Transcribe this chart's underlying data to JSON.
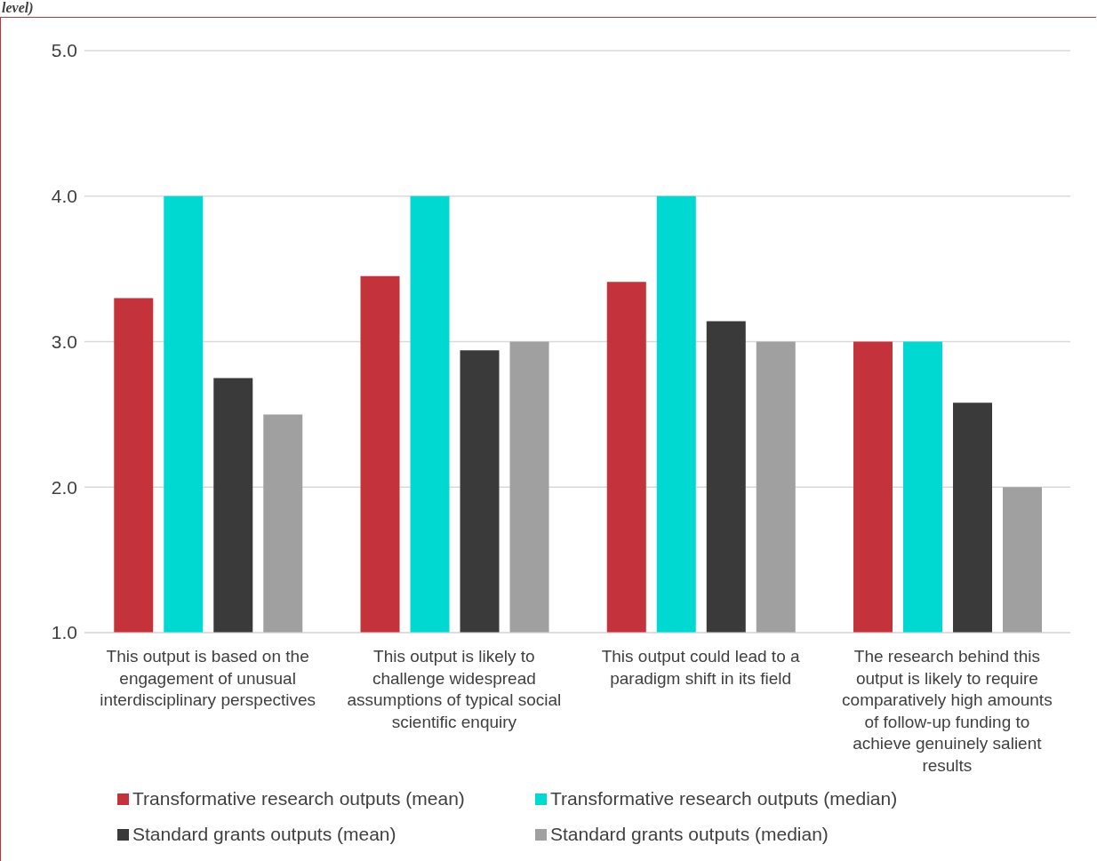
{
  "chart_data": {
    "type": "bar",
    "title": "level)",
    "categories": [
      "This output is based on the engagement of unusual interdisciplinary perspectives",
      "This output is likely to challenge widespread assumptions of typical social scientific enquiry",
      "This output could lead to a paradigm shift in its field",
      "The research behind this output is likely to require comparatively high amounts of follow-up funding to achieve genuinely salient results"
    ],
    "series": [
      {
        "name": "Transformative research outputs (mean)",
        "color": "#c4323c",
        "values": [
          3.3,
          3.45,
          3.41,
          3.0
        ]
      },
      {
        "name": "Transformative research outputs (median)",
        "color": "#00d8d2",
        "values": [
          4.0,
          4.0,
          4.0,
          3.0
        ]
      },
      {
        "name": "Standard grants outputs (mean)",
        "color": "#3a3a3a",
        "values": [
          2.75,
          2.94,
          3.14,
          2.58
        ]
      },
      {
        "name": "Standard grants outputs (median)",
        "color": "#a0a0a0",
        "values": [
          2.5,
          3.0,
          3.0,
          2.0
        ]
      }
    ],
    "ylim": [
      1,
      5
    ],
    "yticks": [
      {
        "value": 1,
        "label": "1.0"
      },
      {
        "value": 2,
        "label": "2.0"
      },
      {
        "value": 3,
        "label": "3.0"
      },
      {
        "value": 4,
        "label": "4.0"
      },
      {
        "value": 5,
        "label": "5.0"
      }
    ],
    "grid": "y",
    "legend": "bottom"
  }
}
